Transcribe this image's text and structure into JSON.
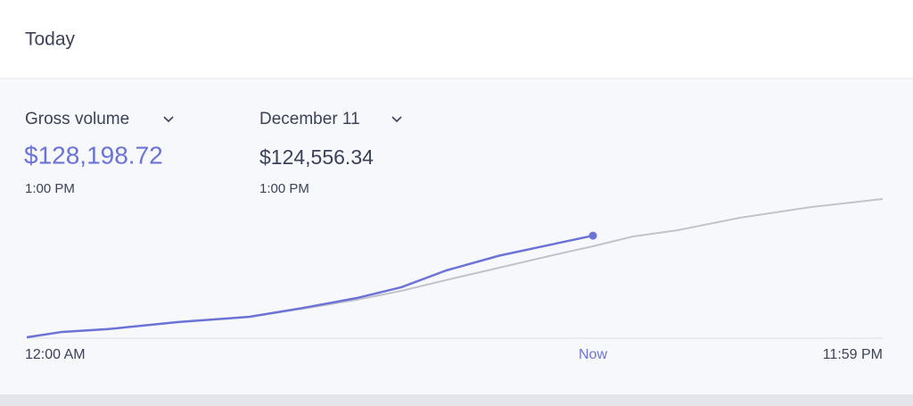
{
  "header": {
    "title": "Today"
  },
  "summary": [
    {
      "label": "Gross volume",
      "value": "$128,198.72",
      "time": "1:00 PM"
    },
    {
      "label": "December 11",
      "value": "$124,556.34",
      "time": "1:00 PM"
    }
  ],
  "chart_data": {
    "type": "line",
    "x": [
      0,
      1,
      2.25,
      4.25,
      6.25,
      7.75,
      9.25,
      10.5,
      11.75,
      13.25,
      14.75,
      15.875,
      17,
      18.25,
      20,
      22,
      24
    ],
    "series": [
      {
        "color": "#6b73d6",
        "values": [
          0,
          3.4,
          5.1,
          9.6,
          12.9,
          18.5,
          24.7,
          31.5,
          42,
          51.4,
          58.6,
          64,
          null,
          null,
          null,
          null,
          null
        ]
      },
      {
        "color": "#c3c3cc",
        "values": [
          0,
          3.4,
          5.1,
          9.6,
          12.9,
          18,
          23.6,
          29.2,
          36,
          43.8,
          51.7,
          57.3,
          63.5,
          67.4,
          75.3,
          82,
          87.1
        ]
      }
    ],
    "xlim": [
      0,
      24
    ],
    "ylim": [
      0,
      100
    ],
    "xticks": [
      {
        "value": 0,
        "label": "12:00 AM"
      },
      {
        "value": 15.875,
        "label": "Now"
      },
      {
        "value": 24,
        "label": "11:59 PM"
      }
    ]
  }
}
